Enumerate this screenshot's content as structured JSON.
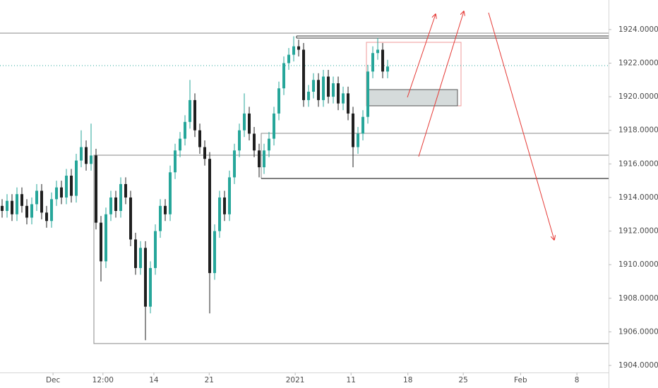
{
  "chart_data": {
    "type": "candlestick",
    "x": [
      0,
      1,
      2,
      3,
      4,
      5,
      6,
      7,
      8,
      9,
      10,
      11,
      12,
      13,
      14,
      15,
      16,
      17,
      18,
      19,
      20,
      21,
      22,
      23,
      24,
      25,
      26,
      27,
      28,
      29,
      30,
      31,
      32,
      33,
      34,
      35,
      36,
      37,
      38,
      39,
      40,
      41,
      42,
      43,
      44,
      45,
      46,
      47,
      48,
      49,
      50,
      51,
      52,
      53,
      54,
      55,
      56,
      57,
      58,
      59,
      60,
      61,
      62,
      63,
      64,
      65,
      66,
      67,
      68,
      69,
      70,
      71,
      72,
      73,
      74,
      75,
      76,
      77,
      78
    ],
    "open": [
      1913.5,
      1913.2,
      1913.8,
      1913.0,
      1914.2,
      1913.5,
      1912.8,
      1913.6,
      1914.4,
      1913.1,
      1912.6,
      1913.9,
      1914.6,
      1914.0,
      1915.3,
      1914.1,
      1916.2,
      1917.0,
      1916.0,
      1916.5,
      1912.5,
      1910.2,
      1913.0,
      1914.0,
      1913.2,
      1914.8,
      1914.0,
      1911.5,
      1909.8,
      1911.0,
      1907.5,
      1909.8,
      1912.0,
      1913.5,
      1913.0,
      1915.5,
      1916.8,
      1917.5,
      1918.5,
      1919.8,
      1918.0,
      1917.0,
      1916.3,
      1909.5,
      1912.0,
      1914.0,
      1913.0,
      1915.2,
      1916.8,
      1918.0,
      1919.0,
      1917.8,
      1916.8,
      1915.8,
      1916.8,
      1917.5,
      1919.0,
      1920.5,
      1922.0,
      1922.5,
      1923.0,
      1922.8,
      1919.8,
      1920.3,
      1921.0,
      1919.8,
      1921.2,
      1920.0,
      1920.8,
      1919.6,
      1920.2,
      1919.0,
      1917.0,
      1917.8,
      1918.8,
      1921.5,
      1922.6,
      1922.8,
      1921.5
    ],
    "high": [
      1913.9,
      1914.2,
      1914.2,
      1914.6,
      1914.6,
      1913.9,
      1914.0,
      1914.8,
      1914.8,
      1913.5,
      1914.3,
      1915.0,
      1915.0,
      1915.7,
      1915.7,
      1916.6,
      1918.0,
      1917.4,
      1918.4,
      1916.9,
      1912.9,
      1913.4,
      1914.4,
      1914.4,
      1915.2,
      1915.2,
      1914.4,
      1911.9,
      1911.4,
      1911.4,
      1910.2,
      1912.4,
      1913.9,
      1913.9,
      1915.9,
      1917.2,
      1917.9,
      1918.9,
      1921.0,
      1920.2,
      1918.4,
      1917.4,
      1916.7,
      1912.4,
      1914.4,
      1914.4,
      1915.6,
      1917.2,
      1918.4,
      1920.2,
      1919.4,
      1918.2,
      1917.2,
      1917.2,
      1917.9,
      1919.4,
      1920.9,
      1922.4,
      1922.9,
      1923.6,
      1923.4,
      1923.2,
      1920.7,
      1921.4,
      1921.4,
      1921.6,
      1921.6,
      1921.2,
      1921.2,
      1920.6,
      1920.6,
      1919.4,
      1918.2,
      1919.2,
      1921.9,
      1923.0,
      1923.5,
      1923.2,
      1922.2
    ],
    "low": [
      1912.8,
      1912.8,
      1912.6,
      1912.6,
      1913.1,
      1912.4,
      1912.4,
      1913.2,
      1912.7,
      1912.2,
      1912.2,
      1913.5,
      1913.6,
      1913.6,
      1913.7,
      1913.7,
      1915.8,
      1915.6,
      1915.6,
      1912.1,
      1909.0,
      1909.8,
      1912.6,
      1912.8,
      1912.8,
      1913.6,
      1911.1,
      1909.4,
      1909.4,
      1905.5,
      1907.1,
      1909.4,
      1911.6,
      1912.6,
      1912.6,
      1915.1,
      1916.4,
      1917.1,
      1918.1,
      1917.6,
      1916.6,
      1915.9,
      1907.1,
      1909.1,
      1911.6,
      1912.6,
      1912.6,
      1914.8,
      1916.4,
      1917.6,
      1917.4,
      1916.4,
      1915.2,
      1915.4,
      1916.4,
      1917.1,
      1918.6,
      1920.1,
      1921.6,
      1922.1,
      1922.4,
      1919.4,
      1919.4,
      1919.9,
      1919.4,
      1919.4,
      1919.6,
      1919.6,
      1919.2,
      1919.2,
      1918.6,
      1915.8,
      1916.6,
      1917.4,
      1918.4,
      1921.1,
      1922.2,
      1921.1,
      1921.1
    ],
    "close": [
      1913.2,
      1913.8,
      1913.0,
      1914.2,
      1913.5,
      1912.8,
      1913.6,
      1914.4,
      1913.1,
      1912.6,
      1913.9,
      1914.6,
      1914.0,
      1915.3,
      1914.1,
      1916.2,
      1917.0,
      1916.0,
      1916.5,
      1912.5,
      1910.2,
      1913.0,
      1914.0,
      1913.2,
      1914.8,
      1914.0,
      1911.5,
      1909.8,
      1911.0,
      1907.5,
      1909.8,
      1912.0,
      1913.5,
      1913.0,
      1915.5,
      1916.8,
      1917.5,
      1918.5,
      1919.8,
      1918.0,
      1917.0,
      1916.3,
      1909.5,
      1912.0,
      1914.0,
      1913.0,
      1915.2,
      1916.8,
      1918.0,
      1919.0,
      1917.8,
      1916.8,
      1915.8,
      1916.8,
      1917.5,
      1919.0,
      1920.5,
      1922.0,
      1922.5,
      1923.0,
      1922.8,
      1919.8,
      1920.3,
      1921.0,
      1919.8,
      1921.2,
      1920.0,
      1920.8,
      1919.6,
      1920.2,
      1919.0,
      1917.0,
      1917.8,
      1918.8,
      1921.5,
      1922.6,
      1922.8,
      1921.5,
      1921.8
    ],
    "up_color": "#26a69a",
    "down_color": "#1f1f1f",
    "xlim": [
      -0.43,
      122.71
    ],
    "xticks": [
      {
        "value": 10.3,
        "label": "Dec"
      },
      {
        "value": 20.4,
        "label": "12:00"
      },
      {
        "value": 30.7,
        "label": "14"
      },
      {
        "value": 41.9,
        "label": "21"
      },
      {
        "value": 59.3,
        "label": "2021"
      },
      {
        "value": 70.6,
        "label": "11"
      },
      {
        "value": 82.1,
        "label": "18"
      },
      {
        "value": 93.3,
        "label": "25"
      },
      {
        "value": 104.9,
        "label": "Feb"
      },
      {
        "value": 116.3,
        "label": "8"
      }
    ],
    "ylim": [
      1903.58,
      1925.76
    ],
    "yticks": [
      {
        "value": 1904,
        "label": "1904.000000"
      },
      {
        "value": 1906,
        "label": "1906.000000"
      },
      {
        "value": 1908,
        "label": "1908.000000"
      },
      {
        "value": 1910,
        "label": "1910.000000"
      },
      {
        "value": 1912,
        "label": "1912.000000"
      },
      {
        "value": 1914,
        "label": "1914.000000"
      },
      {
        "value": 1916,
        "label": "1916.000000"
      },
      {
        "value": 1918,
        "label": "1918.000000"
      },
      {
        "value": 1920,
        "label": "1920.000000"
      },
      {
        "value": 1922,
        "label": "1922.000000"
      },
      {
        "value": 1924,
        "label": "1924.000000"
      }
    ],
    "grid": false
  }
}
